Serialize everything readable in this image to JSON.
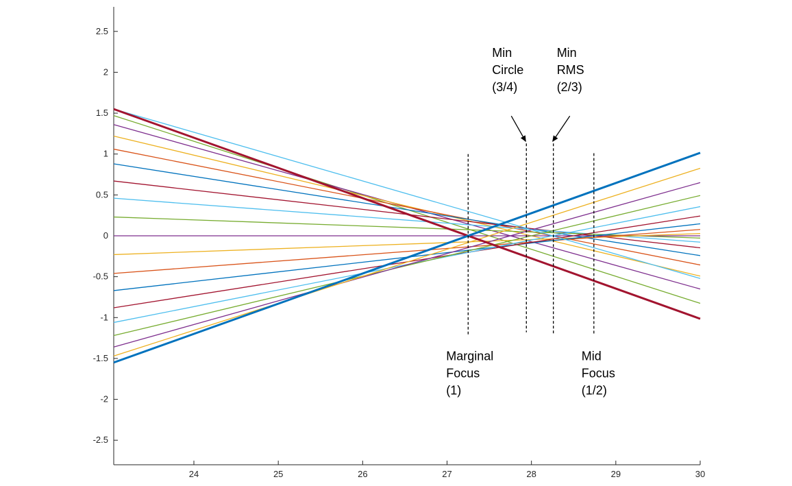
{
  "chart_data": {
    "type": "line",
    "title": "",
    "xlabel": "",
    "ylabel": "",
    "xlim": [
      23.05,
      30
    ],
    "ylim": [
      -2.8,
      2.8
    ],
    "grid": false,
    "x_ticks": [
      "24",
      "25",
      "26",
      "27",
      "28",
      "29",
      "30"
    ],
    "y_ticks": [
      "2.5",
      "2",
      "1.5",
      "1",
      "0.5",
      "0",
      "-0.5",
      "-1",
      "-1.5",
      "-2",
      "-2.5"
    ],
    "rays": [
      {
        "color": "#A2142F",
        "y_start": 1.55,
        "focus": 27.25,
        "bold": true
      },
      {
        "color": "#0072BD",
        "y_start": -1.55,
        "focus": 27.25,
        "bold": true
      },
      {
        "color": "#77AC30",
        "y_start": 1.47,
        "focus": 27.5
      },
      {
        "color": "#7E2F8E",
        "y_start": 1.36,
        "focus": 27.75
      },
      {
        "color": "#EDB120",
        "y_start": 1.22,
        "focus": 28.0
      },
      {
        "color": "#D95319",
        "y_start": 1.06,
        "focus": 28.25
      },
      {
        "color": "#0072BD",
        "y_start": 0.88,
        "focus": 28.5
      },
      {
        "color": "#A2142F",
        "y_start": 0.67,
        "focus": 28.75
      },
      {
        "color": "#4DBEEE",
        "y_start": 0.46,
        "focus": 29.0
      },
      {
        "color": "#77AC30",
        "y_start": 0.23,
        "focus": 29.25
      },
      {
        "color": "#7E2F8E",
        "y_start": 0.0,
        "focus": 29.5
      },
      {
        "color": "#EDB120",
        "y_start": -0.23,
        "focus": 29.25
      },
      {
        "color": "#D95319",
        "y_start": -0.46,
        "focus": 29.0
      },
      {
        "color": "#0072BD",
        "y_start": -0.67,
        "focus": 28.75
      },
      {
        "color": "#A2142F",
        "y_start": -0.88,
        "focus": 28.5
      },
      {
        "color": "#4DBEEE",
        "y_start": -1.06,
        "focus": 28.25
      },
      {
        "color": "#77AC30",
        "y_start": -1.22,
        "focus": 28.0
      },
      {
        "color": "#7E2F8E",
        "y_start": -1.36,
        "focus": 27.75
      },
      {
        "color": "#EDB120",
        "y_start": -1.47,
        "focus": 27.5
      },
      {
        "color": "#4DBEEE",
        "y_start": 1.55,
        "focus": 28.25
      }
    ],
    "focus_markers": [
      {
        "name": "marginal-focus",
        "x": 27.25,
        "y_top": 1.0,
        "y_bottom": -1.22,
        "label_lines": [
          "Marginal",
          "Focus",
          "(1)"
        ],
        "label_position": "below"
      },
      {
        "name": "min-circle",
        "x": 27.94,
        "y_top": 1.13,
        "y_bottom": -1.18,
        "label_lines": [
          "Min",
          "Circle",
          "(3/4)"
        ],
        "label_position": "above",
        "arrow": true
      },
      {
        "name": "min-rms",
        "x": 28.26,
        "y_top": 1.13,
        "y_bottom": -1.2,
        "label_lines": [
          "Min",
          "RMS",
          "(2/3)"
        ],
        "label_position": "above",
        "arrow": true
      },
      {
        "name": "mid-focus",
        "x": 28.74,
        "y_top": 1.01,
        "y_bottom": -1.22,
        "label_lines": [
          "Mid",
          "Focus",
          "(1/2)"
        ],
        "label_position": "below"
      }
    ]
  }
}
